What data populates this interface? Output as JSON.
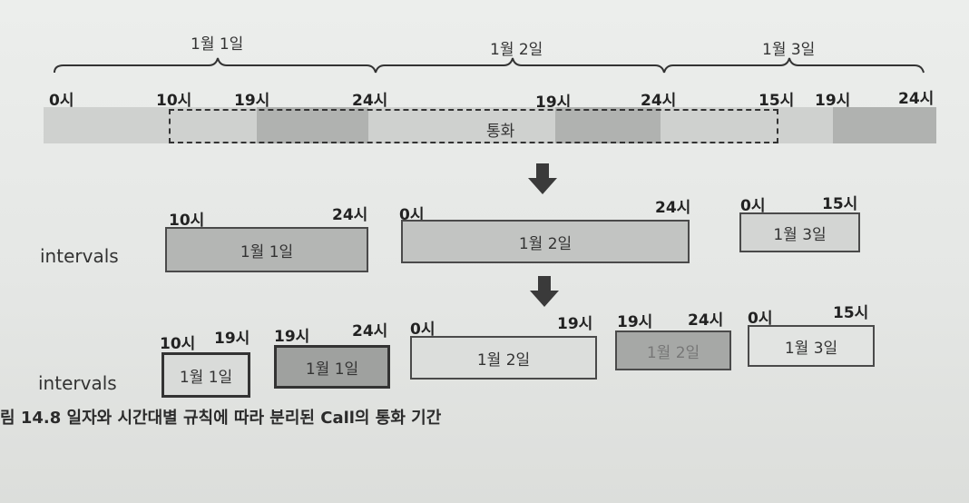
{
  "days": {
    "d1": "1월 1일",
    "d2": "1월 2일",
    "d3": "1월 3일"
  },
  "timeline": {
    "hours": [
      "0시",
      "10시",
      "19시",
      "24시",
      "19시",
      "24시",
      "15시",
      "19시",
      "24시"
    ],
    "call_label": "통화"
  },
  "row1": {
    "label": "intervals",
    "ticks": [
      "10시",
      "24시",
      "0시",
      "24시",
      "0시",
      "15시"
    ],
    "boxes": [
      "1월 1일",
      "1월 2일",
      "1월 3일"
    ]
  },
  "row2": {
    "label": "intervals",
    "ticks": [
      "10시",
      "19시",
      "19시",
      "24시",
      "0시",
      "19시",
      "19시",
      "24시",
      "0시",
      "15시"
    ],
    "boxes": [
      "1월 1일",
      "1월 1일",
      "1월 2일",
      "1월 2일",
      "1월 3일"
    ]
  },
  "caption": "림 14.8 일자와 시간대별 규칙에 따라 분리된 Call의 통화 기간",
  "colors": {
    "light": "#cfd1cf",
    "dark": "#aeb0ae",
    "box": "#bdbfbd",
    "box_dark": "#a9aba9"
  }
}
